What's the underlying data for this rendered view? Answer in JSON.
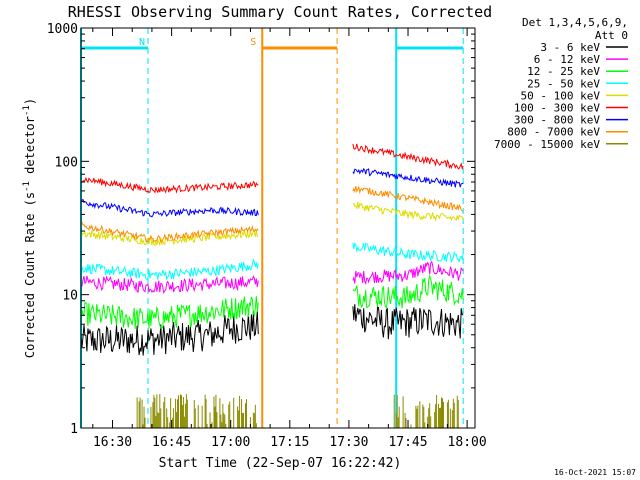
{
  "colors": {
    "background": "#ffffff",
    "axis": "#000000",
    "night_marker": "#00e5ee",
    "saa_marker": "#ff8c00"
  },
  "chart_data": {
    "type": "line",
    "title": "RHESSI Observing Summary Count Rates, Corrected",
    "xlabel": "Start Time (22-Sep-07 16:22:42)",
    "ylabel_main": "Corrected Count Rate (s",
    "ylabel_exp1": "-1",
    "ylabel_mid": " detector",
    "ylabel_exp2": "-1",
    "ylabel_end": ")",
    "y_scale": "log",
    "ylim": [
      1,
      1000
    ],
    "xlim": [
      "16:22",
      "18:02"
    ],
    "x_ticks": [
      "16:30",
      "16:45",
      "17:00",
      "17:15",
      "17:30",
      "17:45",
      "18:00"
    ],
    "y_ticks": [
      "1",
      "10",
      "100",
      "1000"
    ],
    "legend_header": [
      "Det 1,3,4,5,6,9,",
      "Att 0"
    ],
    "legend_position": "right",
    "footer_date": "16-Oct-2021 15:07",
    "markers": [
      {
        "label": "N",
        "color": "#00e5ee",
        "bar_start": "16:22",
        "bar_end": "16:39",
        "solid_at": "16:22",
        "dashed_at": "16:39"
      },
      {
        "label": "S",
        "color": "#ff8c00",
        "bar_start": "17:08",
        "bar_end": "17:27",
        "solid_at": "17:08",
        "dashed_at": "17:27"
      },
      {
        "label": "",
        "color": "#00e5ee",
        "bar_start": "17:42",
        "bar_end": "17:59",
        "solid_at": "17:42",
        "dashed_at": "17:59"
      }
    ],
    "segments": [
      {
        "start": "16:22",
        "end": "17:07"
      },
      {
        "start": "17:31",
        "end": "17:59"
      }
    ],
    "series": [
      {
        "name": "3 - 6 keV",
        "color": "#000000",
        "noise": 0.12,
        "points": [
          [
            "16:22",
            4.5
          ],
          [
            "16:40",
            4.6
          ],
          [
            "16:55",
            5.0
          ],
          [
            "17:00",
            5.6
          ],
          [
            "17:07",
            5.8
          ],
          [
            "17:31",
            7.2
          ],
          [
            "17:40",
            6.0
          ],
          [
            "17:50",
            6.4
          ],
          [
            "17:59",
            6.0
          ]
        ]
      },
      {
        "name": "6 - 12 keV",
        "color": "#ff00ff",
        "noise": 0.05,
        "points": [
          [
            "16:22",
            12.5
          ],
          [
            "16:40",
            11.5
          ],
          [
            "16:55",
            12.0
          ],
          [
            "17:07",
            12.5
          ],
          [
            "17:31",
            13.5
          ],
          [
            "17:45",
            14.0
          ],
          [
            "17:50",
            16.0
          ],
          [
            "17:59",
            14.0
          ]
        ]
      },
      {
        "name": "12 - 25 keV",
        "color": "#00ff00",
        "noise": 0.09,
        "points": [
          [
            "16:22",
            7.2
          ],
          [
            "16:40",
            6.5
          ],
          [
            "16:55",
            7.5
          ],
          [
            "17:07",
            8.5
          ],
          [
            "17:31",
            10.0
          ],
          [
            "17:45",
            9.5
          ],
          [
            "17:50",
            11.5
          ],
          [
            "17:59",
            10.0
          ]
        ]
      },
      {
        "name": "25 - 50 keV",
        "color": "#00ffff",
        "noise": 0.04,
        "points": [
          [
            "16:22",
            16.0
          ],
          [
            "16:40",
            14.0
          ],
          [
            "16:55",
            15.0
          ],
          [
            "17:07",
            17.0
          ],
          [
            "17:31",
            23.0
          ],
          [
            "17:45",
            20.0
          ],
          [
            "17:59",
            19.0
          ]
        ]
      },
      {
        "name": "50 - 100 keV",
        "color": "#dddd00",
        "noise": 0.03,
        "points": [
          [
            "16:22",
            29.0
          ],
          [
            "16:40",
            25.0
          ],
          [
            "16:55",
            27.0
          ],
          [
            "17:07",
            29.0
          ],
          [
            "17:31",
            47.0
          ],
          [
            "17:45",
            40.0
          ],
          [
            "17:59",
            37.0
          ]
        ]
      },
      {
        "name": "100 - 300 keV",
        "color": "#ff0000",
        "noise": 0.025,
        "points": [
          [
            "16:22",
            74.0
          ],
          [
            "16:40",
            61.0
          ],
          [
            "16:55",
            64.0
          ],
          [
            "17:07",
            67.0
          ],
          [
            "17:31",
            130.0
          ],
          [
            "17:45",
            108.0
          ],
          [
            "17:59",
            91.0
          ]
        ]
      },
      {
        "name": "300 - 800 keV",
        "color": "#0000ff",
        "noise": 0.025,
        "points": [
          [
            "16:22",
            50.0
          ],
          [
            "16:40",
            40.0
          ],
          [
            "16:55",
            43.0
          ],
          [
            "17:07",
            41.0
          ],
          [
            "17:31",
            86.0
          ],
          [
            "17:45",
            76.0
          ],
          [
            "17:59",
            66.0
          ]
        ]
      },
      {
        "name": "800 - 7000 keV",
        "color": "#ff8c00",
        "noise": 0.025,
        "points": [
          [
            "16:22",
            33.0
          ],
          [
            "16:40",
            26.0
          ],
          [
            "16:55",
            29.0
          ],
          [
            "17:07",
            31.0
          ],
          [
            "17:31",
            63.0
          ],
          [
            "17:45",
            53.0
          ],
          [
            "17:59",
            44.0
          ]
        ]
      },
      {
        "name": "7000 - 15000 keV",
        "color": "#8b8b00",
        "noise": 0,
        "spiky": true,
        "points": [
          [
            "16:22",
            1.0
          ],
          [
            "17:59",
            1.0
          ]
        ]
      }
    ]
  }
}
